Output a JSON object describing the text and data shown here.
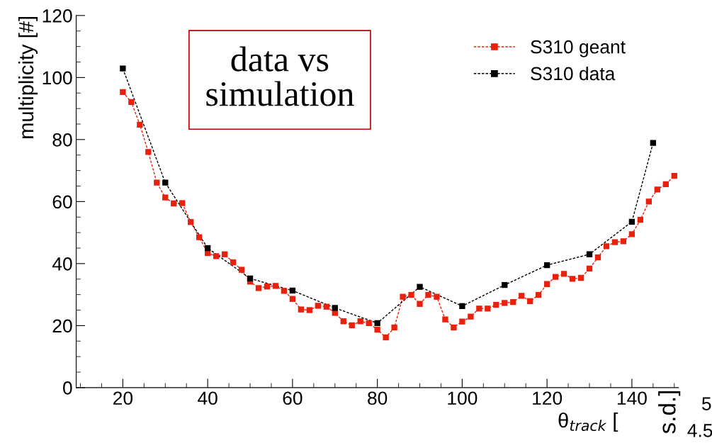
{
  "chart_data": {
    "type": "line",
    "xlabel": "θ$_{track}$ [",
    "ylabel": "multiplicity [#]",
    "xlim": [
      9,
      151
    ],
    "ylim": [
      0,
      120
    ],
    "xticks": [
      20,
      40,
      60,
      80,
      100,
      120,
      140
    ],
    "yticks": [
      0,
      20,
      40,
      60,
      80,
      100,
      120
    ],
    "marker": "square",
    "line_style": "dashed",
    "grid": false,
    "legend": "top right",
    "annotations": [
      "data vs\nsimulation",
      "s.d.]",
      "5",
      "4.5"
    ],
    "series": [
      {
        "name": "S310 geant",
        "color": "#e8200c",
        "x": [
          20,
          22,
          24,
          26,
          28,
          30,
          32,
          34,
          36,
          38,
          40,
          42,
          44,
          46,
          48,
          50,
          52,
          54,
          56,
          58,
          60,
          62,
          64,
          66,
          68,
          70,
          72,
          74,
          76,
          78,
          80,
          82,
          84,
          86,
          88,
          90,
          92,
          94,
          96,
          98,
          100,
          102,
          104,
          106,
          108,
          110,
          112,
          114,
          116,
          118,
          120,
          122,
          124,
          126,
          128,
          130,
          132,
          134,
          136,
          138,
          140,
          142,
          144,
          146,
          148,
          150
        ],
        "values": [
          95.3,
          92.1,
          84.8,
          76.0,
          66.1,
          61.3,
          59.4,
          59.5,
          53.4,
          48.5,
          43.4,
          42.4,
          43.0,
          40.4,
          38.0,
          34.2,
          32.1,
          32.6,
          32.8,
          31.2,
          28.6,
          25.2,
          25.0,
          26.4,
          26.1,
          24.1,
          21.4,
          20.1,
          21.4,
          20.8,
          18.7,
          16.2,
          19.4,
          29.3,
          29.9,
          27.0,
          29.9,
          29.3,
          22.0,
          19.4,
          21.3,
          22.9,
          25.5,
          25.5,
          26.7,
          27.3,
          27.6,
          29.6,
          27.9,
          29.9,
          33.4,
          35.7,
          36.7,
          35.1,
          35.4,
          38.4,
          42.0,
          45.6,
          46.9,
          47.2,
          49.5,
          54.1,
          60.0,
          63.9,
          65.6,
          68.3
        ]
      },
      {
        "name": "S310 data",
        "color": "#000000",
        "x": [
          20,
          30,
          40,
          50,
          60,
          70,
          80,
          90,
          100,
          110,
          120,
          130,
          140,
          145
        ],
        "values": [
          102.9,
          66.1,
          45.0,
          35.2,
          31.3,
          25.7,
          20.8,
          32.5,
          26.3,
          33.1,
          39.5,
          43.0,
          53.5,
          78.9
        ]
      }
    ]
  }
}
